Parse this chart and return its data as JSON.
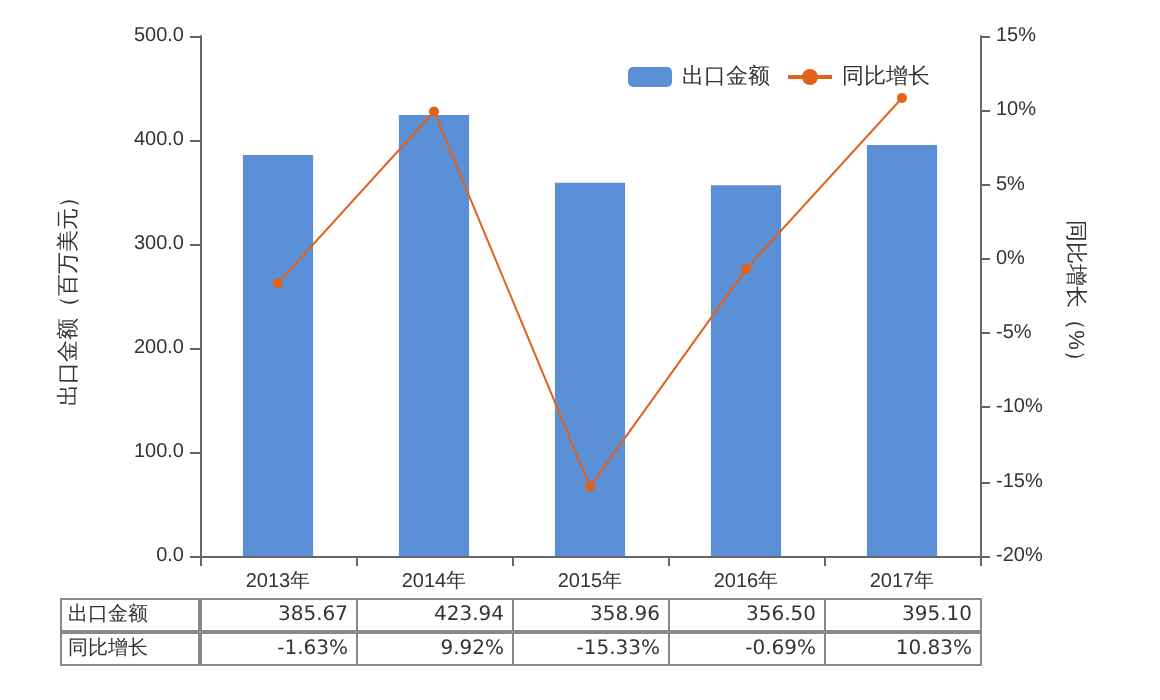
{
  "chart_data": {
    "type": "bar",
    "categories": [
      "2013年",
      "2014年",
      "2015年",
      "2016年",
      "2017年"
    ],
    "series": [
      {
        "name": "出口金额",
        "color": "#5b8fd6",
        "values": [
          385.67,
          423.94,
          358.96,
          356.5,
          395.1
        ],
        "value_labels": [
          "385.67",
          "423.94",
          "358.96",
          "356.50",
          "395.10"
        ]
      },
      {
        "name": "同比增长",
        "type": "line",
        "axis": "y2",
        "color": "#e0621c",
        "values": [
          -1.63,
          9.92,
          -15.33,
          -0.69,
          10.83
        ],
        "value_labels": [
          "-1.63%",
          "9.92%",
          "-15.33%",
          "-0.69%",
          "10.83%"
        ]
      }
    ],
    "ylabel": "出口金额（百万美元）",
    "y2label": "同比增长（%）",
    "ylim": [
      0,
      500
    ],
    "yticks": [
      {
        "value": 0,
        "label": "0.0"
      },
      {
        "value": 100,
        "label": "100.0"
      },
      {
        "value": 200,
        "label": "200.0"
      },
      {
        "value": 300,
        "label": "300.0"
      },
      {
        "value": 400,
        "label": "400.0"
      },
      {
        "value": 500,
        "label": "500.0"
      }
    ],
    "y2lim": [
      -20,
      15
    ],
    "y2ticks": [
      {
        "value": -20,
        "label": "-20%"
      },
      {
        "value": -15,
        "label": "-15%"
      },
      {
        "value": -10,
        "label": "-10%"
      },
      {
        "value": -5,
        "label": "-5%"
      },
      {
        "value": 0,
        "label": "0%"
      },
      {
        "value": 5,
        "label": "5%"
      },
      {
        "value": 10,
        "label": "10%"
      },
      {
        "value": 15,
        "label": "15%"
      }
    ],
    "legend": "top right",
    "marker": "circle"
  }
}
